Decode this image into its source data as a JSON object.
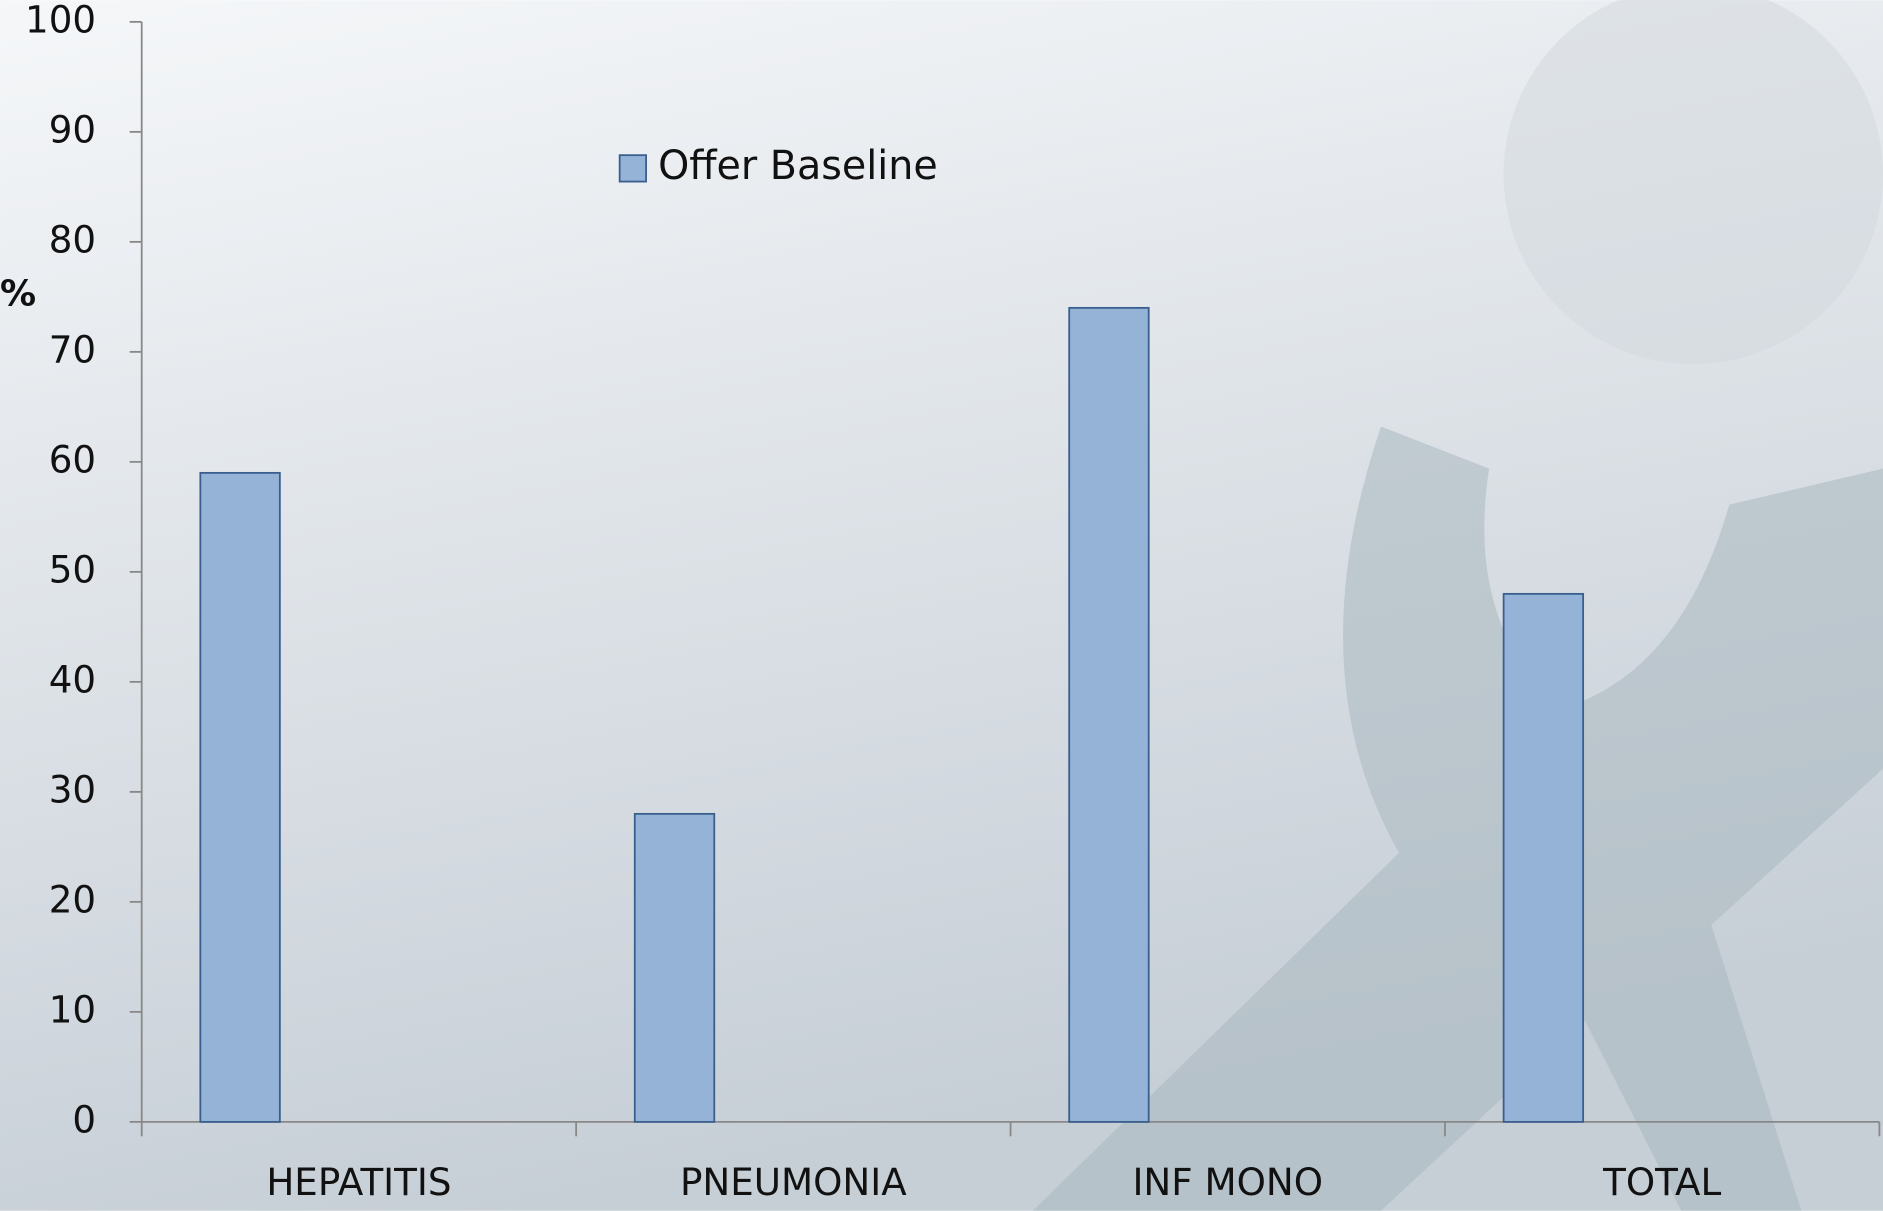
{
  "chart_data": {
    "type": "bar",
    "y_label": "%",
    "categories": [
      "HEPATITIS",
      "PNEUMONIA",
      "INF MONO",
      "TOTAL"
    ],
    "series": [
      {
        "name": "Offer Baseline",
        "color": "#95b3d7",
        "values": [
          59,
          28,
          74,
          48
        ]
      }
    ],
    "ylim": [
      0,
      100
    ],
    "yticks": [
      0,
      10,
      20,
      30,
      40,
      50,
      60,
      70,
      80,
      90,
      100
    ]
  }
}
